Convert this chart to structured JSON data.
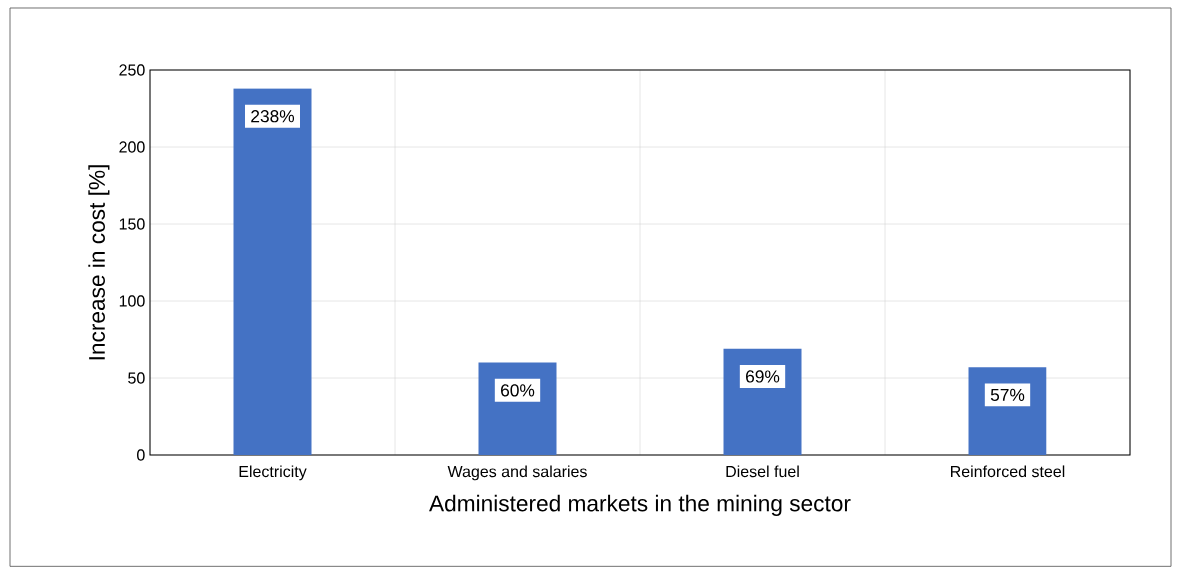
{
  "chart_data": {
    "type": "bar",
    "xlabel": "Administered markets in the mining sector",
    "ylabel": "Increase in cost [%]",
    "categories": [
      "Electricity",
      "Wages and salaries",
      "Diesel fuel",
      "Reinforced steel"
    ],
    "values": [
      238,
      60,
      69,
      57
    ],
    "value_labels": [
      "238%",
      "60%",
      "69%",
      "57%"
    ],
    "color": "#4472c4",
    "ylim": [
      0,
      250
    ],
    "yticks": [
      0,
      50,
      100,
      150,
      200,
      250
    ],
    "grid": true
  }
}
